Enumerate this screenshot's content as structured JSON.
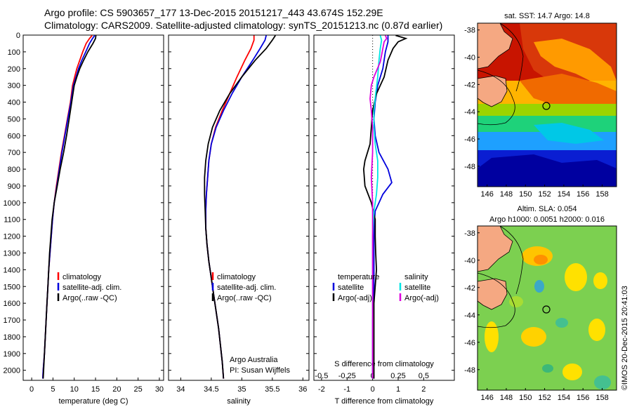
{
  "header": {
    "line1": "Argo profile: CS 5903657_177 13-Dec-2015 20151217_443 43.674S 152.29E",
    "line2": "Climatology: CARS2009. Satellite-adjusted climatology: synTS_20151213.nc (0.87d earlier)"
  },
  "credits": {
    "org": "Argo Australia",
    "pi": "PI: Susan Wijffels",
    "watermark": "©IMOS 20-Dec-2015 20:41:03"
  },
  "colors": {
    "climatology": "#ff0000",
    "satellite": "#0000dd",
    "argo": "#000000",
    "sal_satellite": "#00e5e5",
    "sal_argo": "#dd00dd"
  },
  "chart_data": [
    {
      "type": "line",
      "id": "temperature",
      "xlabel": "temperature (deg C)",
      "ylabel": "",
      "xlim": [
        -2,
        31
      ],
      "ylim": [
        2060,
        0
      ],
      "xticks": [
        0,
        5,
        10,
        15,
        20,
        25,
        30
      ],
      "yticks": [
        0,
        100,
        200,
        300,
        400,
        500,
        600,
        700,
        800,
        900,
        1000,
        1100,
        1200,
        1300,
        1400,
        1500,
        1600,
        1700,
        1800,
        1900,
        2000
      ],
      "legend": [
        "climatology",
        "satellite-adj. clim.",
        "Argo(..raw -QC)"
      ],
      "series": [
        {
          "name": "climatology",
          "color": "#ff0000",
          "points": [
            [
              14.2,
              2
            ],
            [
              13.6,
              20
            ],
            [
              12.8,
              50
            ],
            [
              12.0,
              100
            ],
            [
              11.3,
              150
            ],
            [
              10.6,
              200
            ],
            [
              10.1,
              250
            ],
            [
              9.6,
              300
            ],
            [
              9.1,
              400
            ],
            [
              8.4,
              500
            ],
            [
              7.7,
              600
            ],
            [
              7.0,
              700
            ],
            [
              6.4,
              800
            ],
            [
              5.8,
              900
            ],
            [
              5.3,
              1000
            ],
            [
              4.9,
              1100
            ],
            [
              4.6,
              1200
            ],
            [
              4.3,
              1300
            ],
            [
              4.0,
              1400
            ],
            [
              3.8,
              1500
            ],
            [
              3.6,
              1600
            ],
            [
              3.4,
              1700
            ],
            [
              3.2,
              1800
            ],
            [
              3.0,
              1900
            ],
            [
              2.7,
              2000
            ],
            [
              2.6,
              2050
            ]
          ]
        },
        {
          "name": "satellite-adj. clim.",
          "color": "#0000dd",
          "points": [
            [
              14.8,
              2
            ],
            [
              14.3,
              20
            ],
            [
              13.6,
              50
            ],
            [
              12.7,
              100
            ],
            [
              11.8,
              150
            ],
            [
              11.0,
              200
            ],
            [
              10.4,
              250
            ],
            [
              9.8,
              300
            ],
            [
              9.2,
              400
            ],
            [
              8.5,
              500
            ],
            [
              7.8,
              600
            ],
            [
              7.1,
              700
            ],
            [
              6.5,
              800
            ],
            [
              5.9,
              900
            ],
            [
              5.3,
              1000
            ],
            [
              4.9,
              1100
            ],
            [
              4.6,
              1200
            ],
            [
              4.3,
              1300
            ],
            [
              4.0,
              1400
            ],
            [
              3.8,
              1500
            ],
            [
              3.6,
              1600
            ],
            [
              3.4,
              1700
            ],
            [
              3.2,
              1800
            ],
            [
              3.0,
              1900
            ],
            [
              2.7,
              2000
            ],
            [
              2.6,
              2050
            ]
          ]
        },
        {
          "name": "Argo(..raw -QC)",
          "color": "#000000",
          "points": [
            [
              15.1,
              2
            ],
            [
              15.0,
              20
            ],
            [
              14.4,
              50
            ],
            [
              13.2,
              100
            ],
            [
              12.2,
              150
            ],
            [
              11.3,
              200
            ],
            [
              10.6,
              250
            ],
            [
              10.0,
              300
            ],
            [
              9.4,
              400
            ],
            [
              8.8,
              500
            ],
            [
              8.2,
              600
            ],
            [
              7.5,
              700
            ],
            [
              6.7,
              800
            ],
            [
              6.0,
              900
            ],
            [
              5.3,
              1000
            ],
            [
              4.8,
              1100
            ],
            [
              4.5,
              1200
            ],
            [
              4.2,
              1300
            ],
            [
              4.0,
              1400
            ],
            [
              3.8,
              1500
            ],
            [
              3.6,
              1600
            ],
            [
              3.4,
              1700
            ],
            [
              3.2,
              1800
            ],
            [
              3.0,
              1900
            ],
            [
              2.8,
              2000
            ],
            [
              2.7,
              2050
            ]
          ]
        }
      ]
    },
    {
      "type": "line",
      "id": "salinity",
      "xlabel": "salinity",
      "xlim": [
        33.8,
        36.1
      ],
      "ylim": [
        2060,
        0
      ],
      "xticks": [
        34,
        34.5,
        35,
        35.5,
        36
      ],
      "legend": [
        "climatology",
        "satellite-adj. clim.",
        "Argo(..raw -QC)"
      ],
      "series": [
        {
          "name": "climatology",
          "color": "#ff0000",
          "points": [
            [
              35.2,
              2
            ],
            [
              35.2,
              30
            ],
            [
              35.15,
              80
            ],
            [
              35.05,
              150
            ],
            [
              34.92,
              250
            ],
            [
              34.8,
              350
            ],
            [
              34.68,
              450
            ],
            [
              34.57,
              550
            ],
            [
              34.5,
              650
            ],
            [
              34.46,
              750
            ],
            [
              34.44,
              850
            ],
            [
              34.42,
              950
            ],
            [
              34.41,
              1050
            ],
            [
              34.41,
              1150
            ],
            [
              34.43,
              1250
            ],
            [
              34.46,
              1350
            ],
            [
              34.5,
              1450
            ],
            [
              34.54,
              1550
            ],
            [
              34.58,
              1650
            ],
            [
              34.62,
              1750
            ],
            [
              34.65,
              1850
            ],
            [
              34.68,
              1950
            ],
            [
              34.7,
              2050
            ]
          ]
        },
        {
          "name": "satellite-adj. clim.",
          "color": "#0000dd",
          "points": [
            [
              35.4,
              2
            ],
            [
              35.38,
              30
            ],
            [
              35.3,
              80
            ],
            [
              35.18,
              150
            ],
            [
              35.0,
              250
            ],
            [
              34.84,
              350
            ],
            [
              34.7,
              450
            ],
            [
              34.58,
              550
            ],
            [
              34.5,
              650
            ],
            [
              34.46,
              750
            ],
            [
              34.44,
              850
            ],
            [
              34.42,
              950
            ],
            [
              34.41,
              1050
            ],
            [
              34.41,
              1150
            ],
            [
              34.43,
              1250
            ],
            [
              34.46,
              1350
            ],
            [
              34.5,
              1450
            ],
            [
              34.54,
              1550
            ],
            [
              34.58,
              1650
            ],
            [
              34.62,
              1750
            ],
            [
              34.65,
              1850
            ],
            [
              34.68,
              1950
            ],
            [
              34.7,
              2050
            ]
          ]
        },
        {
          "name": "Argo(..raw -QC)",
          "color": "#000000",
          "points": [
            [
              35.55,
              2
            ],
            [
              35.5,
              30
            ],
            [
              35.4,
              80
            ],
            [
              35.22,
              150
            ],
            [
              35.0,
              250
            ],
            [
              34.8,
              350
            ],
            [
              34.64,
              450
            ],
            [
              34.52,
              550
            ],
            [
              34.45,
              650
            ],
            [
              34.41,
              750
            ],
            [
              34.39,
              850
            ],
            [
              34.39,
              950
            ],
            [
              34.4,
              1050
            ],
            [
              34.41,
              1150
            ],
            [
              34.43,
              1250
            ],
            [
              34.46,
              1350
            ],
            [
              34.5,
              1450
            ],
            [
              34.54,
              1550
            ],
            [
              34.58,
              1650
            ],
            [
              34.62,
              1750
            ],
            [
              34.65,
              1850
            ],
            [
              34.68,
              1950
            ],
            [
              34.7,
              2050
            ]
          ]
        }
      ]
    },
    {
      "type": "line",
      "id": "difference",
      "xlabel": "T difference from climatology",
      "xlabel_top": "S difference from climatology",
      "xlim": [
        -2.3,
        3.2
      ],
      "ylim": [
        2060,
        0
      ],
      "xticks": [
        -2,
        -1,
        0,
        1,
        2
      ],
      "xticks_top": [
        -0.5,
        -0.25,
        0,
        0.25,
        0.5
      ],
      "legend_groups": [
        {
          "title": "temperature",
          "items": [
            "satellite",
            "Argo(-adj)"
          ]
        },
        {
          "title": "salinity",
          "items": [
            "satellite",
            "Argo(-adj)"
          ]
        }
      ],
      "series": [
        {
          "name": "temperature satellite",
          "color": "#0000dd",
          "points": [
            [
              0.6,
              2
            ],
            [
              0.6,
              40
            ],
            [
              0.5,
              100
            ],
            [
              0.4,
              200
            ],
            [
              0.2,
              300
            ],
            [
              0.1,
              400
            ],
            [
              0.05,
              500
            ],
            [
              0.1,
              600
            ],
            [
              0.25,
              700
            ],
            [
              0.6,
              800
            ],
            [
              0.75,
              880
            ],
            [
              0.4,
              950
            ],
            [
              0.1,
              1050
            ],
            [
              0.05,
              1150
            ],
            [
              0.05,
              1300
            ],
            [
              0.05,
              1500
            ],
            [
              0.0,
              1700
            ],
            [
              0.0,
              1900
            ],
            [
              0.0,
              2050
            ]
          ]
        },
        {
          "name": "temperature Argo(-adj)",
          "color": "#000000",
          "points": [
            [
              0.9,
              2
            ],
            [
              1.3,
              20
            ],
            [
              1.0,
              40
            ],
            [
              0.8,
              80
            ],
            [
              0.6,
              150
            ],
            [
              0.45,
              250
            ],
            [
              0.15,
              350
            ],
            [
              0.0,
              450
            ],
            [
              -0.05,
              550
            ],
            [
              -0.1,
              650
            ],
            [
              -0.3,
              750
            ],
            [
              -0.35,
              800
            ],
            [
              -0.3,
              900
            ],
            [
              -0.05,
              1000
            ],
            [
              0.1,
              1100
            ],
            [
              0.1,
              1200
            ],
            [
              0.12,
              1300
            ],
            [
              0.15,
              1400
            ],
            [
              0.1,
              1500
            ],
            [
              0.05,
              1600
            ],
            [
              0.05,
              1800
            ],
            [
              0.05,
              2050
            ]
          ]
        },
        {
          "name": "salinity satellite",
          "color": "#00e5e5",
          "points": [
            [
              0.3,
              2
            ],
            [
              0.35,
              30
            ],
            [
              0.3,
              80
            ],
            [
              0.25,
              150
            ],
            [
              0.2,
              250
            ],
            [
              0.12,
              350
            ],
            [
              0.05,
              450
            ],
            [
              0.05,
              550
            ],
            [
              0.1,
              650
            ],
            [
              0.2,
              750
            ],
            [
              0.2,
              850
            ],
            [
              0.15,
              950
            ],
            [
              0.05,
              1050
            ],
            [
              0.0,
              1200
            ],
            [
              0.0,
              1400
            ],
            [
              0.0,
              1600
            ],
            [
              0.0,
              1800
            ],
            [
              0.0,
              2050
            ]
          ]
        },
        {
          "name": "salinity Argo(-adj)",
          "color": "#dd00dd",
          "points": [
            [
              0.5,
              2
            ],
            [
              0.55,
              20
            ],
            [
              0.45,
              40
            ],
            [
              0.4,
              80
            ],
            [
              0.35,
              120
            ],
            [
              0.3,
              160
            ],
            [
              0.05,
              250
            ],
            [
              -0.05,
              300
            ],
            [
              -0.1,
              380
            ],
            [
              -0.05,
              450
            ],
            [
              0.0,
              550
            ],
            [
              0.0,
              700
            ],
            [
              -0.05,
              850
            ],
            [
              0.0,
              1000
            ],
            [
              0.0,
              1200
            ],
            [
              0.0,
              1500
            ],
            [
              0.0,
              1800
            ],
            [
              0.0,
              2050
            ]
          ]
        }
      ]
    },
    {
      "type": "heatmap",
      "id": "sst_map",
      "title": "sat. SST: 14.7  Argo: 14.8",
      "xlim": [
        145,
        159.5
      ],
      "ylim": [
        -49.5,
        -37.5
      ],
      "xticks": [
        146,
        148,
        150,
        152,
        154,
        156,
        158
      ],
      "yticks": [
        -38,
        -40,
        -42,
        -44,
        -46,
        -48
      ],
      "float_position": [
        152.29,
        -43.674
      ]
    },
    {
      "type": "heatmap",
      "id": "sla_map",
      "title_line1": "Altim. SLA: 0.054",
      "title_line2": "Argo h1000: 0.0051  h2000: 0.016",
      "xlim": [
        145,
        159.5
      ],
      "ylim": [
        -49.5,
        -37.5
      ],
      "xticks": [
        146,
        148,
        150,
        152,
        154,
        156,
        158
      ],
      "yticks": [
        -38,
        -40,
        -42,
        -44,
        -46,
        -48
      ],
      "float_position": [
        152.29,
        -43.674
      ]
    }
  ]
}
